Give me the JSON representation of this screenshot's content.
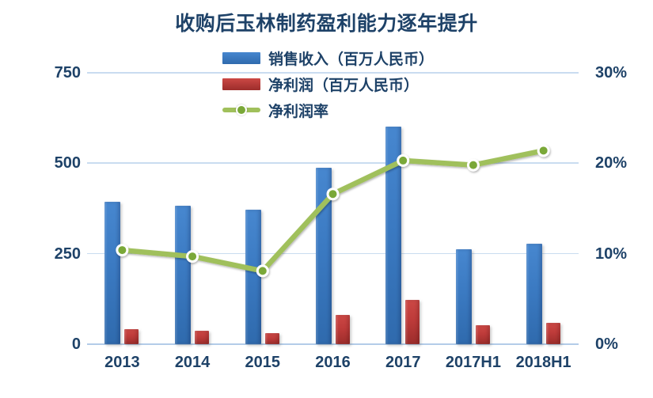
{
  "chart_data": {
    "type": "combo-bar-line",
    "title": "收购后玉林制药盈利能力逐年提升",
    "categories": [
      "2013",
      "2014",
      "2015",
      "2016",
      "2017",
      "2017H1",
      "2018H1"
    ],
    "series": [
      {
        "name": "销售收入（百万人民币）",
        "type": "bar",
        "axis": "left",
        "values": [
          394,
          383,
          372,
          488,
          602,
          262,
          278
        ],
        "color": "#3B7AC2",
        "color_top": "#4787CF",
        "color_bottom": "#2F6AAD"
      },
      {
        "name": "净利润（百万人民币）",
        "type": "bar",
        "axis": "left",
        "values": [
          41,
          37,
          30,
          81,
          122,
          52,
          59
        ],
        "color": "#BE3B3A",
        "color_top": "#CC4845",
        "color_bottom": "#9C2D2B"
      },
      {
        "name": "净利润率",
        "type": "line",
        "axis": "right",
        "values": [
          10.4,
          9.7,
          8.1,
          16.6,
          20.3,
          19.8,
          21.4
        ],
        "color": "#A0C05B",
        "marker_color": "#7AA838"
      }
    ],
    "left_axis": {
      "min": 0,
      "max": 750,
      "ticks": [
        750,
        500,
        250,
        0
      ]
    },
    "right_axis": {
      "min": 0,
      "max": 30,
      "ticks": [
        "30%",
        "20%",
        "10%",
        "0%"
      ],
      "tick_values": [
        30,
        20,
        10,
        0
      ]
    },
    "grid": true,
    "legend_position": "top-center",
    "text_color": "#1E4268",
    "gridline_color": "#C9DCF0"
  }
}
